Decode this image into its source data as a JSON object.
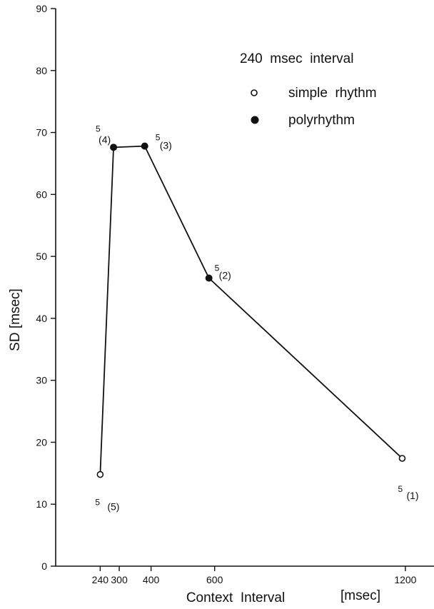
{
  "chart_data": {
    "type": "line",
    "title": "",
    "xlabel": "Context  Interval",
    "xlabel_unit": "[msec]",
    "ylabel": "SD  [msec]",
    "xlim": [
      100,
      1290
    ],
    "ylim": [
      0,
      90
    ],
    "y_ticks": [
      0,
      10,
      20,
      30,
      40,
      50,
      60,
      70,
      80,
      90
    ],
    "x_ticks": [
      240,
      300,
      400,
      600,
      1200
    ],
    "grid": false,
    "legend": {
      "title": "240  msec  interval",
      "position": "top-right",
      "entries": [
        {
          "marker": "open-circle",
          "label": "simple  rhythm"
        },
        {
          "marker": "filled-circle",
          "label": "polyrhythm"
        }
      ]
    },
    "points": [
      {
        "x": 240,
        "y": 14.8,
        "marker": "open",
        "label_sup": "5",
        "label": "(5)"
      },
      {
        "x": 282,
        "y": 67.6,
        "marker": "filled",
        "label_sup": "5",
        "label": "(4)"
      },
      {
        "x": 380,
        "y": 67.8,
        "marker": "filled",
        "label_sup": "5",
        "label": "(3)"
      },
      {
        "x": 582,
        "y": 46.5,
        "marker": "filled",
        "label_sup": "5",
        "label": "(2)"
      },
      {
        "x": 1190,
        "y": 17.4,
        "marker": "open",
        "label_sup": "5",
        "label": "(1)"
      }
    ]
  }
}
